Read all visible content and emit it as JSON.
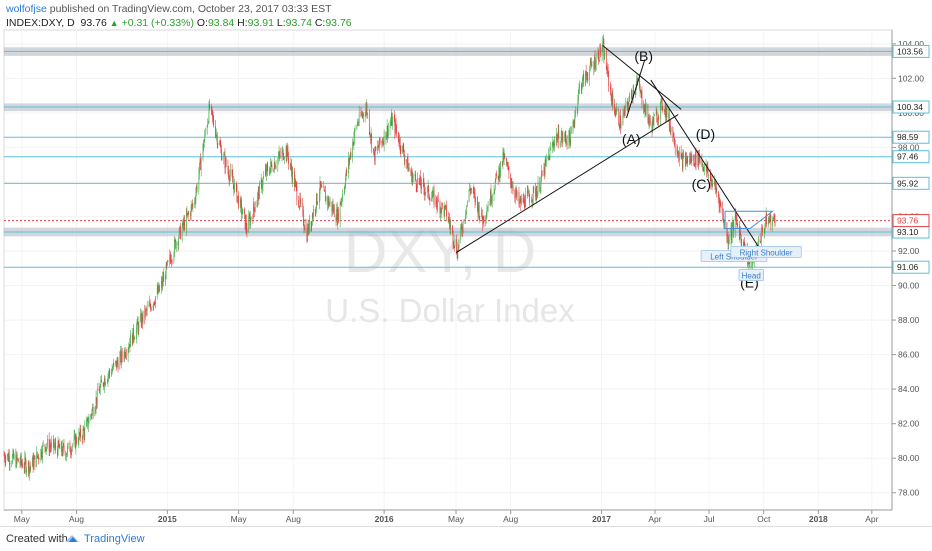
{
  "header": {
    "author": "wolfofjse",
    "published": " published on TradingView.com, October 23, 2017 03:33 EST",
    "symbol": "INDEX:DXY, D",
    "last": "93.76",
    "change": "+0.31 (+0.33%)",
    "o_label": "O:",
    "o_val": "93.84",
    "h_label": "H:",
    "h_val": "93.91",
    "l_label": "L:",
    "l_val": "93.74",
    "c_label": "C:",
    "c_val": "93.76"
  },
  "watermark": {
    "ticker": "DXY, D",
    "name": "U.S. Dollar Index"
  },
  "footer": {
    "created": "Created with",
    "brand": "TradingView"
  },
  "colors": {
    "bull": "#4caf50",
    "bear": "#e04040",
    "level_line": "#5bc0de",
    "level_band": "#aeb6bf",
    "current_price": "#e04040",
    "pattern_box": "#4a90d9"
  },
  "chart_data": {
    "type": "candlestick",
    "ylim": [
      77.0,
      104.8
    ],
    "y_ticks": [
      78.0,
      80.0,
      82.0,
      84.0,
      86.0,
      88.0,
      90.0,
      92.0,
      94.0,
      96.0,
      98.0,
      100.0,
      102.0,
      104.0
    ],
    "x_labels": [
      "May",
      "Aug",
      "2015",
      "May",
      "Aug",
      "2016",
      "May",
      "Aug",
      "2017",
      "Apr",
      "Jul",
      "Oct",
      "2018",
      "Apr"
    ],
    "x_label_dates": [
      "2014-05-01",
      "2014-08-01",
      "2015-01-01",
      "2015-05-01",
      "2015-08-01",
      "2016-01-01",
      "2016-05-01",
      "2016-08-01",
      "2017-01-01",
      "2017-04-01",
      "2017-07-01",
      "2017-10-01",
      "2018-01-01",
      "2018-04-01"
    ],
    "price_path": [
      [
        "2014-04-01",
        80.2
      ],
      [
        "2014-05-15",
        79.5
      ],
      [
        "2014-06-10",
        80.8
      ],
      [
        "2014-07-15",
        80.4
      ],
      [
        "2014-08-15",
        81.6
      ],
      [
        "2014-09-15",
        84.5
      ],
      [
        "2014-10-15",
        85.8
      ],
      [
        "2014-11-15",
        87.8
      ],
      [
        "2014-12-20",
        89.8
      ],
      [
        "2015-01-15",
        92.5
      ],
      [
        "2015-02-15",
        94.8
      ],
      [
        "2015-03-13",
        100.3
      ],
      [
        "2015-04-01",
        97.8
      ],
      [
        "2015-04-25",
        95.6
      ],
      [
        "2015-05-15",
        93.3
      ],
      [
        "2015-06-15",
        96.5
      ],
      [
        "2015-07-20",
        97.9
      ],
      [
        "2015-08-24",
        93.0
      ],
      [
        "2015-09-15",
        95.6
      ],
      [
        "2015-10-15",
        94.0
      ],
      [
        "2015-11-15",
        99.3
      ],
      [
        "2015-12-02",
        100.3
      ],
      [
        "2015-12-15",
        97.5
      ],
      [
        "2016-01-15",
        99.6
      ],
      [
        "2016-02-15",
        96.4
      ],
      [
        "2016-03-15",
        95.4
      ],
      [
        "2016-04-15",
        94.2
      ],
      [
        "2016-05-03",
        92.0
      ],
      [
        "2016-05-25",
        95.7
      ],
      [
        "2016-06-15",
        93.8
      ],
      [
        "2016-07-20",
        97.4
      ],
      [
        "2016-08-15",
        94.7
      ],
      [
        "2016-09-15",
        95.5
      ],
      [
        "2016-10-15",
        98.6
      ],
      [
        "2016-11-10",
        98.5
      ],
      [
        "2016-11-25",
        101.5
      ],
      [
        "2017-01-03",
        103.8
      ],
      [
        "2017-01-20",
        100.5
      ],
      [
        "2017-02-02",
        99.4
      ],
      [
        "2017-03-01",
        101.8
      ],
      [
        "2017-03-25",
        99.2
      ],
      [
        "2017-04-15",
        100.6
      ],
      [
        "2017-05-15",
        97.2
      ],
      [
        "2017-06-15",
        97.4
      ],
      [
        "2017-07-15",
        95.4
      ],
      [
        "2017-08-02",
        92.7
      ],
      [
        "2017-08-15",
        93.8
      ],
      [
        "2017-09-08",
        91.1
      ],
      [
        "2017-09-25",
        92.8
      ],
      [
        "2017-10-06",
        93.8
      ],
      [
        "2017-10-20",
        93.8
      ]
    ],
    "levels": [
      103.56,
      100.34,
      98.59,
      97.46,
      95.92,
      93.1,
      91.06
    ],
    "level_labels": [
      "103.56",
      "100.34",
      "98.59",
      "97.46",
      "95.92",
      "93.10",
      "91.06"
    ],
    "bands": [
      [
        103.3,
        103.8
      ],
      [
        100.1,
        100.55
      ],
      [
        92.85,
        93.35
      ]
    ],
    "current_price": 93.76,
    "current_label": "93.76",
    "annotations": [
      {
        "text": "(A)",
        "date": "2017-02-20",
        "price": 98.2
      },
      {
        "text": "(B)",
        "date": "2017-03-13",
        "price": 103.0
      },
      {
        "text": "(C)",
        "date": "2017-06-18",
        "price": 95.6
      },
      {
        "text": "(D)",
        "date": "2017-06-25",
        "price": 98.5
      },
      {
        "text": "(E)",
        "date": "2017-09-07",
        "price": 89.9
      }
    ],
    "pattern_labels": [
      {
        "text": "Left Shoulder",
        "date": "2017-08-12",
        "price": 91.68
      },
      {
        "text": "Right Shoulder",
        "date": "2017-10-05",
        "price": 91.92
      },
      {
        "text": "Head",
        "date": "2017-09-10",
        "price": 90.58
      }
    ],
    "trendlines": [
      [
        [
          "2016-05-01",
          91.9
        ],
        [
          "2017-05-10",
          99.9
        ]
      ],
      [
        [
          "2017-01-03",
          103.9
        ],
        [
          "2017-05-15",
          100.2
        ]
      ],
      [
        [
          "2017-03-25",
          101.9
        ],
        [
          "2017-09-25",
          92.1
        ]
      ],
      [
        [
          "2017-02-12",
          99.7
        ],
        [
          "2017-03-15",
          103.1
        ]
      ]
    ],
    "pattern_box": [
      [
        "2017-07-28",
        94.3
      ],
      [
        "2017-10-16",
        94.3
      ],
      [
        "2017-09-08",
        93.3
      ],
      [
        "2017-07-28",
        93.3
      ]
    ]
  }
}
